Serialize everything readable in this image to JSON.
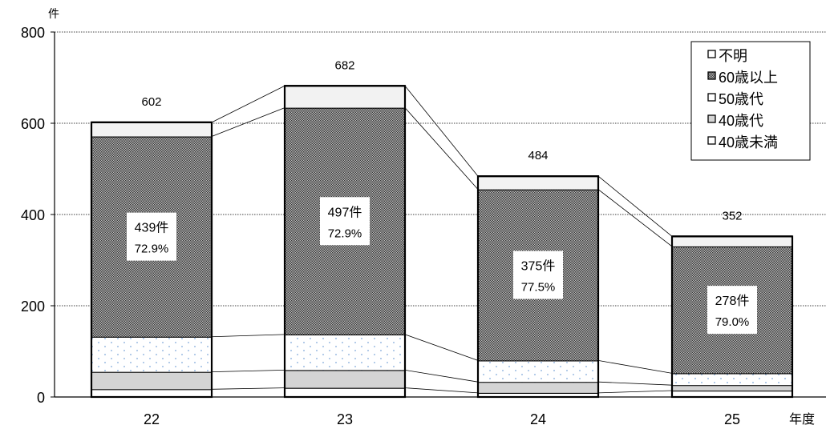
{
  "chart_data": {
    "type": "bar",
    "stacked": true,
    "y_unit": "件",
    "x_unit": "年度",
    "categories": [
      "22",
      "23",
      "24",
      "25"
    ],
    "ylim": [
      0,
      800
    ],
    "yticks": [
      0,
      200,
      400,
      600,
      800
    ],
    "grid": true,
    "legend_position": "top-right",
    "series": [
      {
        "name": "40歳未満",
        "values": [
          17,
          20,
          9,
          14
        ]
      },
      {
        "name": "40歳代",
        "values": [
          38,
          39,
          24,
          12
        ]
      },
      {
        "name": "50歳代",
        "values": [
          77,
          78,
          47,
          26
        ]
      },
      {
        "name": "60歳以上",
        "values": [
          439,
          497,
          375,
          278
        ]
      },
      {
        "name": "不明",
        "values": [
          31,
          48,
          29,
          22
        ]
      }
    ],
    "totals": [
      602,
      682,
      484,
      352
    ],
    "annotations": [
      {
        "count": "439件",
        "percent": "72.9%"
      },
      {
        "count": "497件",
        "percent": "72.9%"
      },
      {
        "count": "375件",
        "percent": "77.5%"
      },
      {
        "count": "278件",
        "percent": "79.0%"
      }
    ],
    "colors": {
      "不明": "#f2f2f2",
      "60歳以上": "#8c8c8c",
      "50歳代": "#ffffff",
      "40歳代": "#d4d4d4",
      "40歳未満": "#ffffff",
      "dots": "#7fa7d9"
    }
  }
}
